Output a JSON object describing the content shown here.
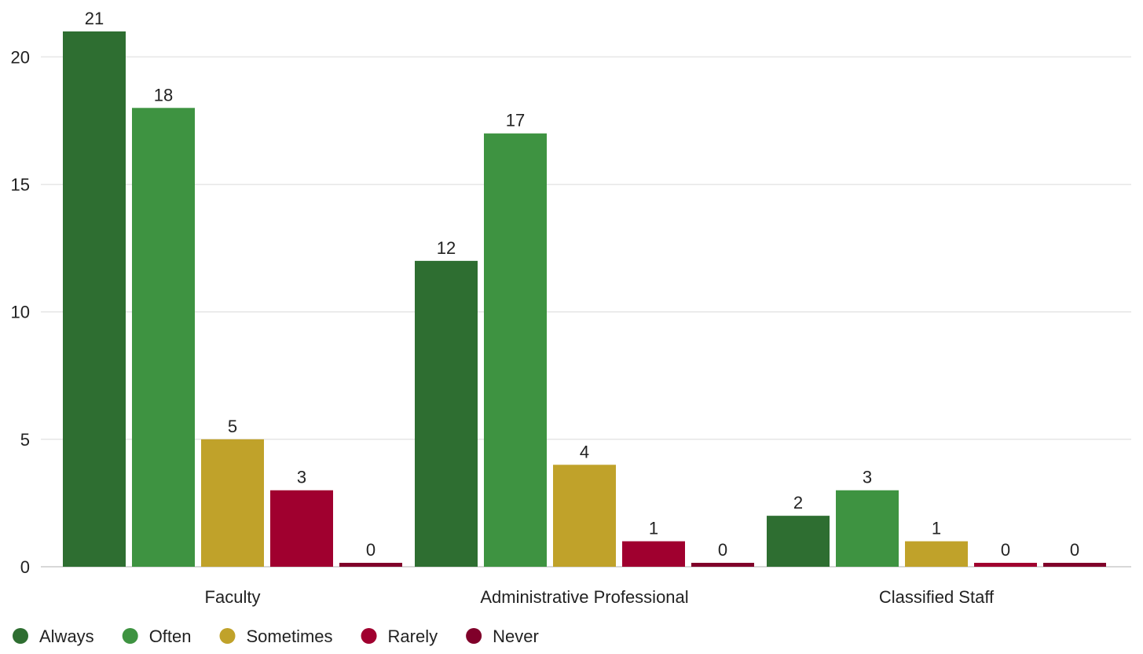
{
  "chart_data": {
    "type": "bar",
    "title": "",
    "xlabel": "",
    "ylabel": "",
    "categories": [
      "Faculty",
      "Administrative Professional",
      "Classified Staff"
    ],
    "series": [
      {
        "name": "Always",
        "values": [
          21,
          12,
          2
        ],
        "color": "#2e6e31"
      },
      {
        "name": "Often",
        "values": [
          18,
          17,
          3
        ],
        "color": "#3e9341"
      },
      {
        "name": "Sometimes",
        "values": [
          5,
          4,
          1
        ],
        "color": "#c0a22a"
      },
      {
        "name": "Rarely",
        "values": [
          3,
          1,
          0
        ],
        "color": "#a0002f"
      },
      {
        "name": "Never",
        "values": [
          0,
          0,
          0
        ],
        "color": "#80002a"
      }
    ],
    "ylim": [
      0,
      21
    ],
    "yticks": [
      0,
      5,
      10,
      15,
      20
    ],
    "grid": true,
    "legend_position": "bottom-left"
  }
}
